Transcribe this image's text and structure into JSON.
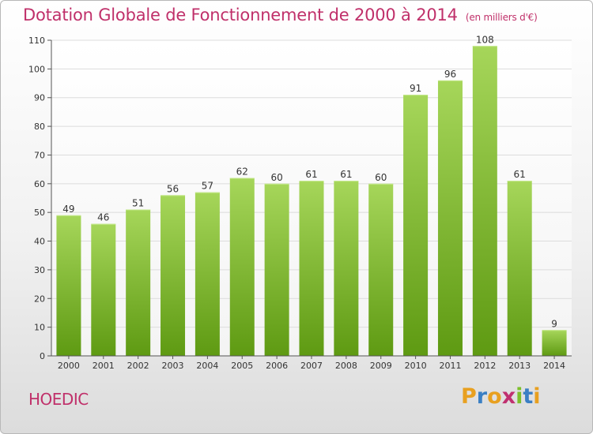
{
  "header": {
    "title": "Dotation Globale de Fonctionnement de 2000 à 2014",
    "unit": "(en milliers d'€)"
  },
  "town": "HOEDIC",
  "logo": {
    "letters": [
      "P",
      "r",
      "o",
      "x",
      "i",
      "t",
      "i"
    ],
    "colors": [
      "#e8a020",
      "#3a7fc4",
      "#e8a020",
      "#c03070",
      "#7cbf2a",
      "#3a7fc4",
      "#e8a020"
    ]
  },
  "chart_data": {
    "type": "bar",
    "title": "Dotation Globale de Fonctionnement de 2000 à 2014",
    "subtitle": "(en milliers d'€)",
    "categories": [
      "2000",
      "2001",
      "2002",
      "2003",
      "2004",
      "2005",
      "2006",
      "2007",
      "2008",
      "2009",
      "2010",
      "2011",
      "2012",
      "2013",
      "2014"
    ],
    "values": [
      49,
      46,
      51,
      56,
      57,
      62,
      60,
      61,
      61,
      60,
      91,
      96,
      108,
      61,
      9
    ],
    "ylim": [
      0,
      110
    ],
    "yticks": [
      0,
      10,
      20,
      30,
      40,
      50,
      60,
      70,
      80,
      90,
      100,
      110
    ],
    "grid": true,
    "xlabel": "",
    "ylabel": "",
    "colors": {
      "bar_top": "#a6d65a",
      "bar_bottom": "#5e9a12",
      "grid": "#dcdcdc",
      "axis": "#555555"
    }
  }
}
